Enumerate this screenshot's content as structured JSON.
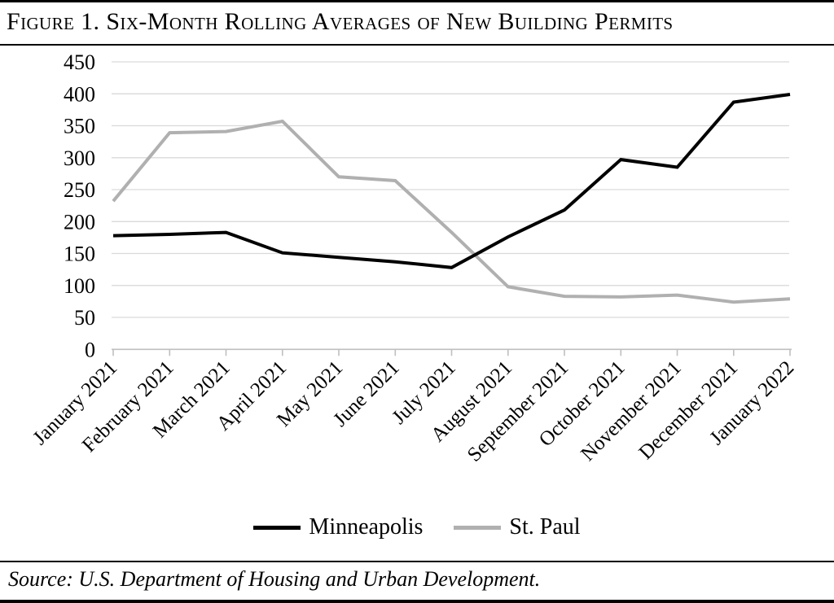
{
  "figure": {
    "title": "Figure 1. Six-Month Rolling Averages of New Building Permits",
    "source": "Source: U.S. Department of Housing and Urban Development."
  },
  "chart_data": {
    "type": "line",
    "title": "Figure 1. Six-Month Rolling Averages of New Building Permits",
    "categories": [
      "January 2021",
      "February 2021",
      "March 2021",
      "April 2021",
      "May 2021",
      "June 2021",
      "July 2021",
      "August 2021",
      "September 2021",
      "October 2021",
      "November 2021",
      "December 2021",
      "January 2022"
    ],
    "series": [
      {
        "name": "Minneapolis",
        "color": "#000000",
        "values": [
          178,
          180,
          183,
          151,
          144,
          137,
          128,
          176,
          218,
          297,
          285,
          387,
          399
        ]
      },
      {
        "name": "St. Paul",
        "color": "#b0b0b0",
        "values": [
          232,
          339,
          341,
          357,
          270,
          264,
          183,
          98,
          83,
          82,
          85,
          74,
          79
        ]
      }
    ],
    "xlabel": "",
    "ylabel": "",
    "ylim": [
      0,
      450
    ],
    "ytick_step": 50,
    "yticks": [
      0,
      50,
      100,
      150,
      200,
      250,
      300,
      350,
      400,
      450
    ],
    "grid": true,
    "grid_color": "#d9d9d9",
    "axis_color": "#bfbfbf",
    "legend_position": "bottom"
  }
}
